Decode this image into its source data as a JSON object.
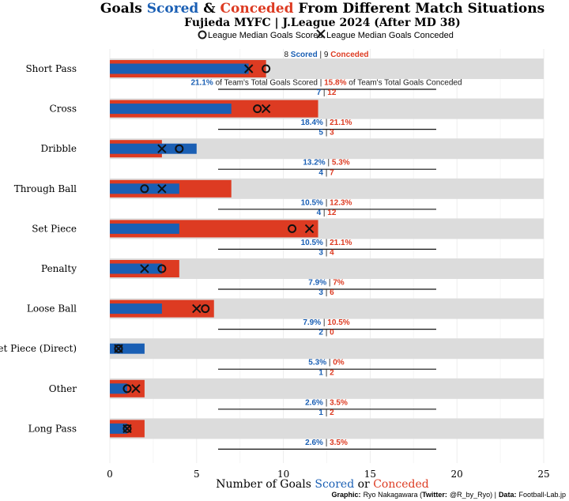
{
  "title": {
    "part1": "Goals ",
    "scored": "Scored",
    "part2": " & ",
    "conceded": "Conceded",
    "part3": " From Different Match Situations",
    "subtitle": "Fujieda MYFC | J.League 2024 (After MD 38)"
  },
  "legend": {
    "median_scored": "League Median Goals Scored",
    "median_conceded": "League Median Goals Conceded"
  },
  "annotation": {
    "scored_word": "Scored",
    "conceded_word": "Conceded",
    "pct_scored_text": "of Team's Total Goals Scored",
    "pct_conceded_text": "of Team's Total Goals Conceded"
  },
  "xlabel": {
    "part1": "Number of Goals ",
    "scored": "Scored",
    "part2": " or ",
    "conceded": "Conceded"
  },
  "credit": {
    "graphic_label": "Graphic:",
    "graphic_value": "Ryo Nakagawara (",
    "twitter_label": "Twitter:",
    "twitter_value": "@R_by_Ryo) |",
    "data_label": "Data:",
    "data_value": "Football-Lab.jp"
  },
  "colors": {
    "scored": "#1a5fb4",
    "conceded": "#dd3b22",
    "background_bar": "#dcdcdc",
    "text": "#1a1a1a"
  },
  "chart_data": {
    "type": "bar",
    "orientation": "horizontal",
    "xlim": [
      0,
      25
    ],
    "xticks": [
      0,
      5,
      10,
      15,
      20,
      25
    ],
    "grid": true,
    "legend_position": "top-center",
    "categories": [
      "Short Pass",
      "Cross",
      "Dribble",
      "Through Ball",
      "Set Piece",
      "Penalty",
      "Loose Ball",
      "Set Piece (Direct)",
      "Other",
      "Long Pass"
    ],
    "series": [
      {
        "name": "Scored",
        "values": [
          8,
          7,
          5,
          4,
          4,
          3,
          3,
          2,
          1,
          1
        ]
      },
      {
        "name": "Conceded",
        "values": [
          9,
          12,
          3,
          7,
          12,
          4,
          6,
          0,
          2,
          2
        ]
      }
    ],
    "pct_scored": [
      "21.1%",
      "18.4%",
      "13.2%",
      "10.5%",
      "10.5%",
      "7.9%",
      "7.9%",
      "5.3%",
      "2.6%",
      "2.6%"
    ],
    "pct_conceded": [
      "15.8%",
      "21.1%",
      "5.3%",
      "12.3%",
      "21.1%",
      "7%",
      "10.5%",
      "0%",
      "3.5%",
      "3.5%"
    ],
    "median_scored": [
      9,
      8.5,
      4,
      2,
      10.5,
      3,
      5.5,
      0.5,
      1,
      1
    ],
    "median_conceded": [
      8,
      9,
      3,
      3,
      11.5,
      2,
      5,
      0.5,
      1.5,
      1
    ]
  }
}
